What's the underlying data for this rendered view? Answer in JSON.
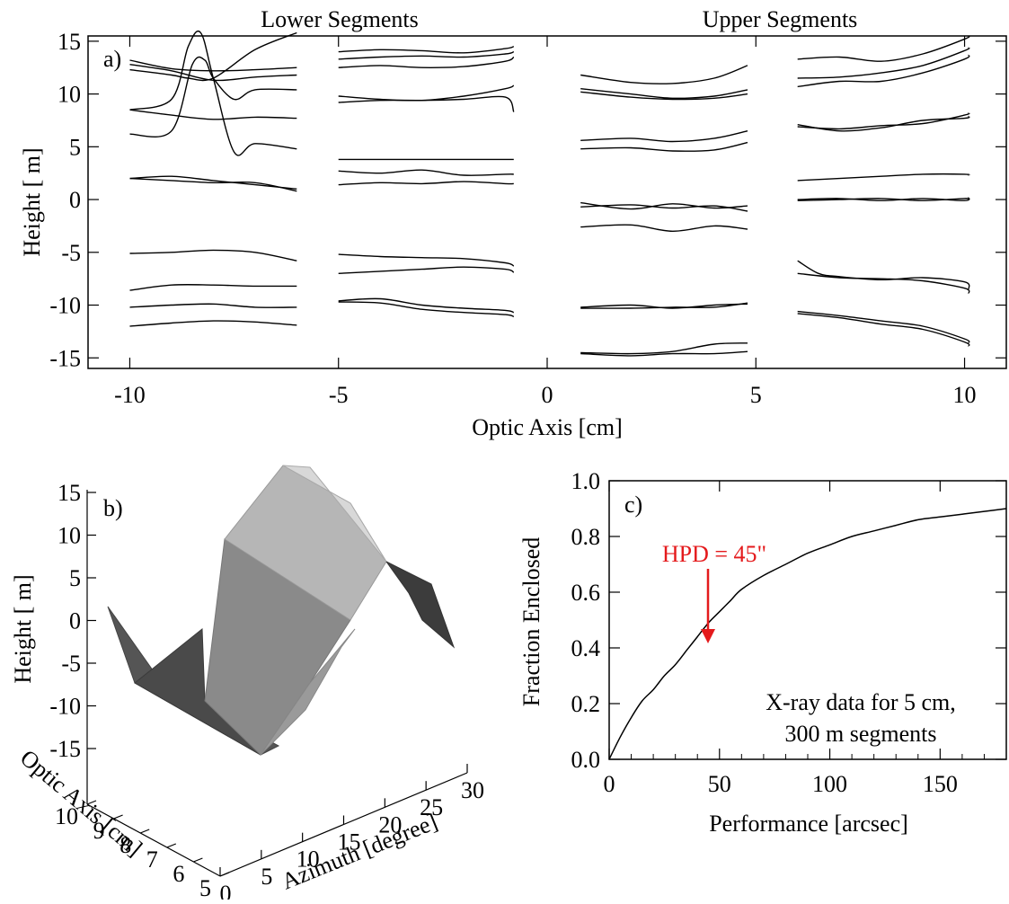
{
  "chart_data": [
    {
      "panel": "a)",
      "type": "line",
      "section_titles": [
        "Lower Segments",
        "Upper Segments"
      ],
      "xlabel": "Optic Axis [cm]",
      "ylabel": "Height [  m]",
      "xlim": [
        -11,
        11
      ],
      "ylim": [
        -16,
        15.5
      ],
      "xticks": [
        -10,
        -5,
        0,
        5,
        10
      ],
      "yticks": [
        -15,
        -10,
        -5,
        0,
        5,
        10,
        15
      ],
      "series": [
        {
          "x": [
            -10,
            -9,
            -8,
            -7,
            -6
          ],
          "y": [
            13.2,
            12.4,
            12.2,
            12.3,
            12.5
          ]
        },
        {
          "x": [
            -10,
            -9,
            -8,
            -7,
            -6
          ],
          "y": [
            12.8,
            12.2,
            11.3,
            11.6,
            11.8
          ]
        },
        {
          "x": [
            -10,
            -9,
            -8.6,
            -8,
            -7,
            -6
          ],
          "y": [
            12.3,
            11.8,
            11.5,
            11.5,
            14.2,
            15.8
          ]
        },
        {
          "x": [
            -10,
            -9,
            -8.6,
            -8.3,
            -8,
            -7.5,
            -7,
            -6
          ],
          "y": [
            8.5,
            9.5,
            14.5,
            15.8,
            11.5,
            4.5,
            5.3,
            4.8
          ]
        },
        {
          "x": [
            -10,
            -9,
            -8.5,
            -8.2,
            -8,
            -7.5,
            -7,
            -6
          ],
          "y": [
            6.2,
            6.5,
            12.8,
            13.2,
            11.5,
            9.5,
            10.4,
            10.4
          ]
        },
        {
          "x": [
            -10,
            -9,
            -8,
            -7,
            -6
          ],
          "y": [
            8.5,
            8.0,
            7.6,
            7.8,
            7.7
          ]
        },
        {
          "x": [
            -10,
            -9,
            -8,
            -7,
            -6
          ],
          "y": [
            2.0,
            2.2,
            1.8,
            1.4,
            1.0
          ]
        },
        {
          "x": [
            -10,
            -9,
            -8,
            -7,
            -6
          ],
          "y": [
            2.0,
            1.8,
            1.6,
            1.6,
            0.8
          ]
        },
        {
          "x": [
            -10,
            -9,
            -8,
            -7,
            -6
          ],
          "y": [
            -5.1,
            -5.0,
            -4.8,
            -5.0,
            -5.8
          ]
        },
        {
          "x": [
            -10,
            -9,
            -8,
            -7,
            -6
          ],
          "y": [
            -8.6,
            -8.1,
            -8.1,
            -8.2,
            -8.2
          ]
        },
        {
          "x": [
            -10,
            -9,
            -8,
            -7,
            -6
          ],
          "y": [
            -10.2,
            -10.0,
            -9.9,
            -10.2,
            -10.2
          ]
        },
        {
          "x": [
            -10,
            -9,
            -8,
            -7,
            -6
          ],
          "y": [
            -12.0,
            -11.7,
            -11.5,
            -11.6,
            -11.9
          ]
        },
        {
          "x": [
            -5,
            -4,
            -3,
            -2,
            -1,
            -0.8
          ],
          "y": [
            14.0,
            14.2,
            14.1,
            13.9,
            14.3,
            14.5
          ]
        },
        {
          "x": [
            -5,
            -4,
            -3,
            -2,
            -1,
            -0.8
          ],
          "y": [
            13.3,
            13.5,
            13.6,
            13.5,
            13.8,
            14.0
          ]
        },
        {
          "x": [
            -5,
            -4,
            -3,
            -2,
            -1,
            -0.8
          ],
          "y": [
            12.5,
            12.7,
            12.5,
            12.6,
            13.1,
            13.5
          ]
        },
        {
          "x": [
            -5,
            -4,
            -3,
            -2,
            -1,
            -0.8
          ],
          "y": [
            9.8,
            9.5,
            9.4,
            9.8,
            10.5,
            10.8
          ]
        },
        {
          "x": [
            -5,
            -4,
            -3,
            -2,
            -1,
            -0.8
          ],
          "y": [
            9.2,
            9.4,
            9.4,
            9.5,
            9.7,
            8.3
          ]
        },
        {
          "x": [
            -5,
            -4,
            -3,
            -2,
            -1,
            -0.8
          ],
          "y": [
            3.8,
            3.8,
            3.8,
            3.8,
            3.8,
            3.8
          ]
        },
        {
          "x": [
            -5,
            -4,
            -3,
            -2,
            -1,
            -0.8
          ],
          "y": [
            2.7,
            2.5,
            2.8,
            2.3,
            2.4,
            2.4
          ]
        },
        {
          "x": [
            -5,
            -4,
            -3,
            -2,
            -1,
            -0.8
          ],
          "y": [
            1.4,
            1.6,
            1.5,
            1.7,
            1.5,
            1.5
          ]
        },
        {
          "x": [
            -5,
            -4,
            -3,
            -2,
            -1,
            -0.8
          ],
          "y": [
            -5.2,
            -5.4,
            -5.5,
            -5.6,
            -6.0,
            -6.3
          ]
        },
        {
          "x": [
            -5,
            -4,
            -3,
            -2,
            -1,
            -0.8
          ],
          "y": [
            -7.0,
            -6.8,
            -6.6,
            -6.4,
            -6.6,
            -6.9
          ]
        },
        {
          "x": [
            -5,
            -4,
            -3,
            -2,
            -1,
            -0.8
          ],
          "y": [
            -9.6,
            -9.4,
            -10.0,
            -10.3,
            -10.5,
            -10.7
          ]
        },
        {
          "x": [
            -5,
            -4,
            -3,
            -2,
            -1,
            -0.8
          ],
          "y": [
            -9.7,
            -9.8,
            -10.4,
            -10.7,
            -10.9,
            -11.1
          ]
        },
        {
          "x": [
            0.8,
            2,
            3,
            4,
            4.8
          ],
          "y": [
            11.8,
            11.1,
            11.0,
            11.5,
            12.7
          ]
        },
        {
          "x": [
            0.8,
            2,
            3,
            4,
            4.8
          ],
          "y": [
            10.5,
            10.0,
            9.6,
            9.8,
            10.4
          ]
        },
        {
          "x": [
            0.8,
            2,
            3,
            4,
            4.8
          ],
          "y": [
            10.2,
            9.7,
            9.5,
            9.6,
            10.0
          ]
        },
        {
          "x": [
            0.8,
            2,
            3,
            4,
            4.8
          ],
          "y": [
            5.6,
            5.8,
            5.5,
            5.8,
            6.5
          ]
        },
        {
          "x": [
            0.8,
            2,
            3,
            4,
            4.8
          ],
          "y": [
            4.8,
            4.9,
            4.6,
            4.7,
            5.4
          ]
        },
        {
          "x": [
            0.8,
            2,
            3,
            4,
            4.8
          ],
          "y": [
            -0.3,
            -0.9,
            -0.4,
            -0.8,
            -0.6
          ]
        },
        {
          "x": [
            0.8,
            2,
            3,
            4,
            4.8
          ],
          "y": [
            -0.7,
            -0.5,
            -0.8,
            -0.6,
            -1.1
          ]
        },
        {
          "x": [
            0.8,
            2,
            3,
            4,
            4.8
          ],
          "y": [
            -2.6,
            -2.4,
            -3.0,
            -2.5,
            -2.8
          ]
        },
        {
          "x": [
            0.8,
            2,
            3,
            4,
            4.8
          ],
          "y": [
            -10.2,
            -10.0,
            -10.3,
            -10.0,
            -9.9
          ]
        },
        {
          "x": [
            0.8,
            2,
            3,
            4,
            4.8
          ],
          "y": [
            -10.3,
            -10.3,
            -10.2,
            -10.2,
            -9.8
          ]
        },
        {
          "x": [
            0.8,
            2,
            3,
            4,
            4.8
          ],
          "y": [
            -14.5,
            -14.6,
            -14.4,
            -13.7,
            -13.6
          ]
        },
        {
          "x": [
            0.8,
            2,
            3,
            4,
            4.8
          ],
          "y": [
            -14.6,
            -14.8,
            -14.6,
            -14.6,
            -14.4
          ]
        },
        {
          "x": [
            6,
            7,
            8,
            9,
            10,
            10.1
          ],
          "y": [
            13.3,
            13.5,
            13.1,
            13.8,
            15.2,
            15.5
          ]
        },
        {
          "x": [
            6,
            7,
            8,
            9,
            10,
            10.1
          ],
          "y": [
            11.5,
            11.6,
            12.0,
            12.7,
            14.1,
            14.4
          ]
        },
        {
          "x": [
            6,
            7,
            8,
            9,
            10,
            10.1
          ],
          "y": [
            10.7,
            11.2,
            11.2,
            12.0,
            13.3,
            13.7
          ]
        },
        {
          "x": [
            6,
            7,
            8,
            9,
            10,
            10.1
          ],
          "y": [
            6.9,
            6.7,
            7.0,
            7.2,
            8.0,
            8.2
          ]
        },
        {
          "x": [
            6,
            7,
            8,
            9,
            10,
            10.1
          ],
          "y": [
            7.1,
            6.5,
            6.8,
            7.5,
            7.7,
            7.9
          ]
        },
        {
          "x": [
            6,
            7,
            8,
            9,
            10,
            10.1
          ],
          "y": [
            1.8,
            2.0,
            2.2,
            2.4,
            2.4,
            2.3
          ]
        },
        {
          "x": [
            6,
            7,
            8,
            9,
            10,
            10.1
          ],
          "y": [
            0.0,
            0.1,
            -0.1,
            0.1,
            -0.1,
            0.2
          ]
        },
        {
          "x": [
            6,
            7,
            8,
            9,
            10,
            10.1
          ],
          "y": [
            -0.1,
            0.0,
            0.1,
            -0.1,
            0.1,
            0.0
          ]
        },
        {
          "x": [
            6,
            6.5,
            7,
            8,
            9,
            10,
            10.1
          ],
          "y": [
            -5.8,
            -7.0,
            -7.3,
            -7.6,
            -7.4,
            -7.8,
            -8.5
          ]
        },
        {
          "x": [
            6,
            7,
            8,
            9,
            10,
            10.1
          ],
          "y": [
            -7.0,
            -7.4,
            -7.5,
            -7.7,
            -8.4,
            -8.9
          ]
        },
        {
          "x": [
            6,
            7,
            8,
            9,
            10,
            10.1
          ],
          "y": [
            -10.6,
            -11.0,
            -11.5,
            -12.0,
            -13.2,
            -13.6
          ]
        },
        {
          "x": [
            6,
            7,
            8,
            9,
            10,
            10.1
          ],
          "y": [
            -10.8,
            -11.2,
            -11.8,
            -12.3,
            -13.5,
            -13.9
          ]
        }
      ]
    },
    {
      "panel": "b)",
      "type": "surface",
      "zlabel": "Height [  m]",
      "xlabel": "Azimuth [degree]",
      "ylabel": "Optic Axis [cm]",
      "zticks": [
        15,
        10,
        5,
        0,
        -5,
        -10,
        -15
      ],
      "xticks": [
        0,
        5,
        10,
        15,
        20,
        25,
        30
      ],
      "yticks": [
        5,
        6,
        7,
        8,
        9,
        10
      ],
      "profile": {
        "azimuth": [
          0,
          5,
          10,
          15,
          20,
          25,
          30
        ],
        "height": [
          0,
          -10,
          -15,
          5,
          15,
          5,
          -5
        ]
      }
    },
    {
      "panel": "c)",
      "type": "line",
      "xlabel": "Performance [arcsec]",
      "ylabel": "Fraction Enclosed",
      "xlim": [
        0,
        180
      ],
      "ylim": [
        0,
        1.0
      ],
      "xticks": [
        0,
        50,
        100,
        150
      ],
      "yticks": [
        0.0,
        0.2,
        0.4,
        0.6,
        0.8,
        1.0
      ],
      "series": [
        {
          "x": [
            0,
            5,
            10,
            15,
            20,
            25,
            30,
            35,
            40,
            45,
            50,
            55,
            60,
            70,
            80,
            90,
            100,
            110,
            120,
            130,
            140,
            150,
            160,
            170,
            180
          ],
          "y": [
            0.0,
            0.08,
            0.15,
            0.21,
            0.25,
            0.3,
            0.34,
            0.39,
            0.44,
            0.49,
            0.53,
            0.57,
            0.61,
            0.66,
            0.7,
            0.74,
            0.77,
            0.8,
            0.82,
            0.84,
            0.86,
            0.87,
            0.88,
            0.89,
            0.9
          ]
        }
      ],
      "annotation": {
        "text": "HPD = 45\"",
        "x": 45,
        "y": 0.5,
        "color": "#e41a1c"
      },
      "note_lines": [
        "X-ray data for 5 cm,",
        "300   m segments"
      ]
    }
  ]
}
